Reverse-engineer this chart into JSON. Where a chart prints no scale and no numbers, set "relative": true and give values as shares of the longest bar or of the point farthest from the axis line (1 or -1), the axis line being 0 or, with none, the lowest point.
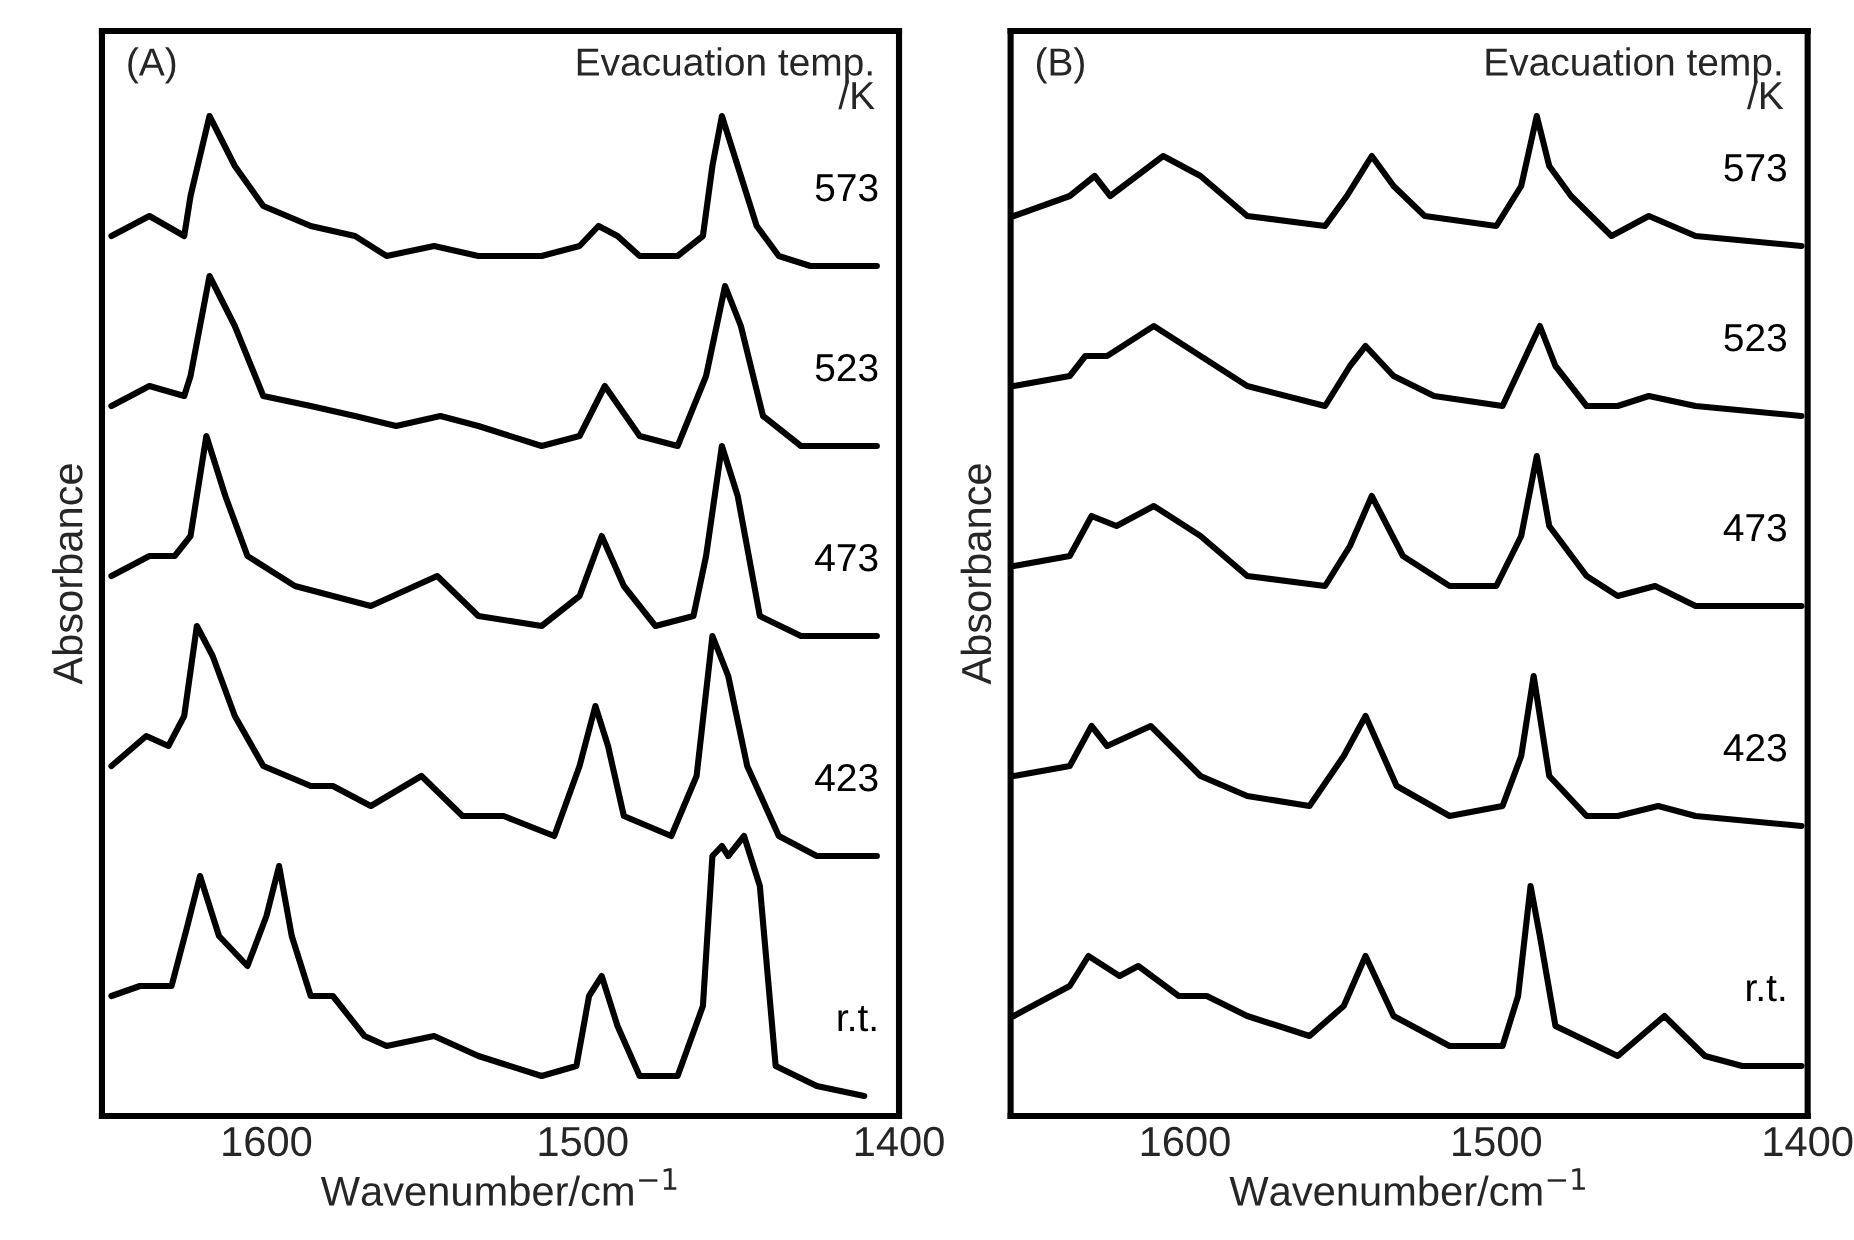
{
  "chart_data": [
    {
      "type": "line",
      "title": "(A)",
      "legend_title": "Evacuation temp.\n/K",
      "xlabel": "Wavenumber/cm$^{−1}$",
      "ylabel": "Absorbance",
      "relative": true,
      "xlim": [
        1652,
        1400
      ],
      "xticks": [
        1600,
        1500,
        1400
      ],
      "grid": false,
      "legend": false,
      "line_style": "solid",
      "series": [
        {
          "name": "573",
          "color": "#000000",
          "x": [
            1649,
            1637,
            1626,
            1624,
            1618,
            1610,
            1601,
            1586,
            1572,
            1562,
            1547,
            1533,
            1513,
            1501,
            1495,
            1489,
            1482,
            1470,
            1462,
            1459,
            1456,
            1453,
            1445,
            1438,
            1428,
            1407
          ],
          "values": [
            0.88,
            0.9,
            0.88,
            0.92,
            1.0,
            0.95,
            0.91,
            0.89,
            0.88,
            0.86,
            0.87,
            0.86,
            0.86,
            0.87,
            0.89,
            0.88,
            0.86,
            0.86,
            0.88,
            0.95,
            1.0,
            0.97,
            0.89,
            0.86,
            0.85,
            0.85
          ]
        },
        {
          "name": "523",
          "color": "#000000",
          "x": [
            1649,
            1637,
            1626,
            1624,
            1618,
            1610,
            1601,
            1586,
            1572,
            1559,
            1545,
            1533,
            1513,
            1501,
            1493,
            1482,
            1470,
            1461,
            1455,
            1450,
            1443,
            1431,
            1407
          ],
          "values": [
            0.71,
            0.73,
            0.72,
            0.74,
            0.84,
            0.79,
            0.72,
            0.71,
            0.7,
            0.69,
            0.7,
            0.69,
            0.67,
            0.68,
            0.73,
            0.68,
            0.67,
            0.74,
            0.83,
            0.79,
            0.7,
            0.67,
            0.67
          ]
        },
        {
          "name": "473",
          "color": "#000000",
          "x": [
            1649,
            1637,
            1629,
            1624,
            1619,
            1613,
            1606,
            1591,
            1579,
            1567,
            1546,
            1533,
            1513,
            1501,
            1494,
            1487,
            1477,
            1465,
            1461,
            1456,
            1451,
            1444,
            1431,
            1407
          ],
          "values": [
            0.54,
            0.56,
            0.56,
            0.58,
            0.68,
            0.62,
            0.56,
            0.53,
            0.52,
            0.51,
            0.54,
            0.5,
            0.49,
            0.52,
            0.58,
            0.53,
            0.49,
            0.5,
            0.56,
            0.67,
            0.62,
            0.5,
            0.48,
            0.48
          ]
        },
        {
          "name": "423",
          "color": "#000000",
          "x": [
            1649,
            1638,
            1631,
            1626,
            1622,
            1617,
            1610,
            1601,
            1586,
            1579,
            1567,
            1551,
            1538,
            1525,
            1509,
            1501,
            1496,
            1492,
            1487,
            1472,
            1464,
            1459,
            1454,
            1448,
            1438,
            1426,
            1407
          ],
          "values": [
            0.35,
            0.38,
            0.37,
            0.4,
            0.49,
            0.46,
            0.4,
            0.35,
            0.33,
            0.33,
            0.31,
            0.34,
            0.3,
            0.3,
            0.28,
            0.35,
            0.41,
            0.37,
            0.3,
            0.28,
            0.34,
            0.48,
            0.44,
            0.35,
            0.28,
            0.26,
            0.26
          ]
        },
        {
          "name": "r.t.",
          "color": "#000000",
          "x": [
            1649,
            1640,
            1630,
            1625,
            1621,
            1615,
            1606,
            1600,
            1596,
            1592,
            1586,
            1579,
            1569,
            1562,
            1547,
            1533,
            1513,
            1502,
            1498,
            1494,
            1489,
            1482,
            1470,
            1462,
            1459,
            1456,
            1454,
            1449,
            1444,
            1439,
            1426,
            1411
          ],
          "values": [
            0.12,
            0.13,
            0.13,
            0.19,
            0.24,
            0.18,
            0.15,
            0.2,
            0.25,
            0.18,
            0.12,
            0.12,
            0.08,
            0.07,
            0.08,
            0.06,
            0.04,
            0.05,
            0.12,
            0.14,
            0.09,
            0.04,
            0.04,
            0.11,
            0.26,
            0.27,
            0.26,
            0.28,
            0.23,
            0.05,
            0.03,
            0.02
          ]
        }
      ]
    },
    {
      "type": "line",
      "title": "(B)",
      "legend_title": "Evacuation temp.\n/K",
      "xlabel": "Wavenumber/cm$^{−1}$",
      "ylabel": "Absorbance",
      "relative": true,
      "xlim": [
        1656,
        1400
      ],
      "xticks": [
        1600,
        1500,
        1400
      ],
      "grid": false,
      "legend": false,
      "line_style": "solid",
      "series": [
        {
          "name": "573",
          "color": "#000000",
          "x": [
            1655,
            1637,
            1629,
            1624,
            1607,
            1595,
            1580,
            1555,
            1548,
            1540,
            1533,
            1523,
            1500,
            1492,
            1487,
            1483,
            1476,
            1463,
            1451,
            1436,
            1402
          ],
          "values": [
            0.9,
            0.92,
            0.94,
            0.92,
            0.96,
            0.94,
            0.9,
            0.89,
            0.92,
            0.96,
            0.93,
            0.9,
            0.89,
            0.93,
            1.0,
            0.95,
            0.92,
            0.88,
            0.9,
            0.88,
            0.87
          ]
        },
        {
          "name": "523",
          "color": "#000000",
          "x": [
            1655,
            1637,
            1632,
            1625,
            1610,
            1595,
            1580,
            1555,
            1547,
            1542,
            1533,
            1520,
            1498,
            1492,
            1486,
            1481,
            1471,
            1461,
            1451,
            1436,
            1402
          ],
          "values": [
            0.73,
            0.74,
            0.76,
            0.76,
            0.79,
            0.76,
            0.73,
            0.71,
            0.75,
            0.77,
            0.74,
            0.72,
            0.71,
            0.75,
            0.79,
            0.75,
            0.71,
            0.71,
            0.72,
            0.71,
            0.7
          ]
        },
        {
          "name": "473",
          "color": "#000000",
          "x": [
            1655,
            1637,
            1630,
            1622,
            1610,
            1595,
            1580,
            1555,
            1547,
            1540,
            1530,
            1515,
            1500,
            1492,
            1487,
            1483,
            1471,
            1461,
            1449,
            1436,
            1402
          ],
          "values": [
            0.55,
            0.56,
            0.6,
            0.59,
            0.61,
            0.58,
            0.54,
            0.53,
            0.57,
            0.62,
            0.56,
            0.53,
            0.53,
            0.58,
            0.66,
            0.59,
            0.54,
            0.52,
            0.53,
            0.51,
            0.51
          ]
        },
        {
          "name": "423",
          "color": "#000000",
          "x": [
            1655,
            1637,
            1630,
            1625,
            1611,
            1595,
            1580,
            1560,
            1549,
            1542,
            1532,
            1515,
            1498,
            1492,
            1488,
            1483,
            1471,
            1461,
            1448,
            1436,
            1402
          ],
          "values": [
            0.34,
            0.35,
            0.39,
            0.37,
            0.39,
            0.34,
            0.32,
            0.31,
            0.36,
            0.4,
            0.33,
            0.3,
            0.31,
            0.36,
            0.44,
            0.34,
            0.3,
            0.3,
            0.31,
            0.3,
            0.29
          ]
        },
        {
          "name": "r.t.",
          "color": "#000000",
          "x": [
            1655,
            1637,
            1631,
            1621,
            1615,
            1602,
            1593,
            1580,
            1560,
            1549,
            1542,
            1533,
            1515,
            1498,
            1493,
            1489,
            1486,
            1481,
            1461,
            1446,
            1433,
            1421,
            1402
          ],
          "values": [
            0.1,
            0.13,
            0.16,
            0.14,
            0.15,
            0.12,
            0.12,
            0.1,
            0.08,
            0.11,
            0.16,
            0.1,
            0.07,
            0.07,
            0.12,
            0.23,
            0.18,
            0.09,
            0.06,
            0.1,
            0.06,
            0.05,
            0.05
          ]
        }
      ]
    }
  ]
}
